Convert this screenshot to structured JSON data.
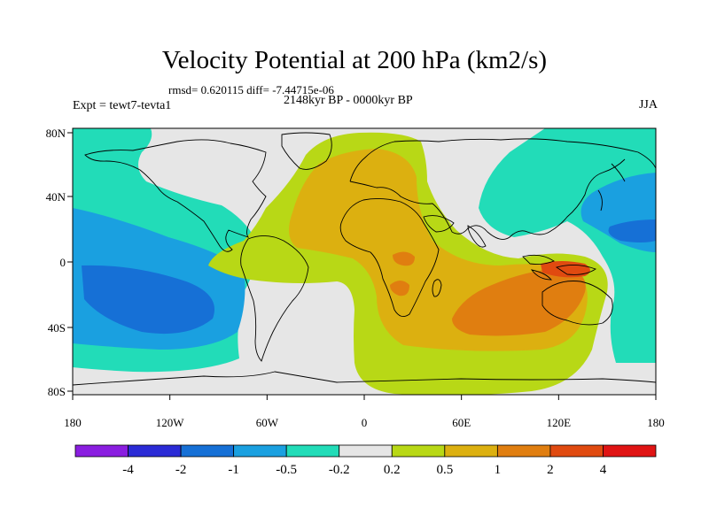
{
  "title": "Velocity Potential at 200 hPa (km2/s)",
  "stats_line": "rmsd= 0.620115 diff= -7.44715e-06",
  "left_label": "Expt = tewt7-tevta1",
  "center_label": "2148kyr BP - 0000kyr BP",
  "right_label": "JJA",
  "y_ticks": [
    "80N",
    "40N",
    "0",
    "40S",
    "80S"
  ],
  "x_ticks": [
    "180",
    "120W",
    "60W",
    "0",
    "60E",
    "120E",
    "180"
  ],
  "colorbar": {
    "labels": [
      "-4",
      "-2",
      "-1",
      "-0.5",
      "-0.2",
      "0.2",
      "0.5",
      "1",
      "2",
      "4"
    ],
    "colors": [
      "#8a1ee0",
      "#2b2bd6",
      "#1670d6",
      "#1aa0e0",
      "#22dcb8",
      "#e6e6e6",
      "#b8d816",
      "#dcb010",
      "#e07e10",
      "#e04a10",
      "#e01414"
    ]
  },
  "map_colors": {
    "neutral": "#e6e6e6",
    "teal": "#22dcb8",
    "cyan": "#1aa0e0",
    "blue": "#1670d6",
    "yellowgreen": "#b8d816",
    "gold": "#dcb010",
    "orange": "#e07e10",
    "red": "#e04a10"
  }
}
